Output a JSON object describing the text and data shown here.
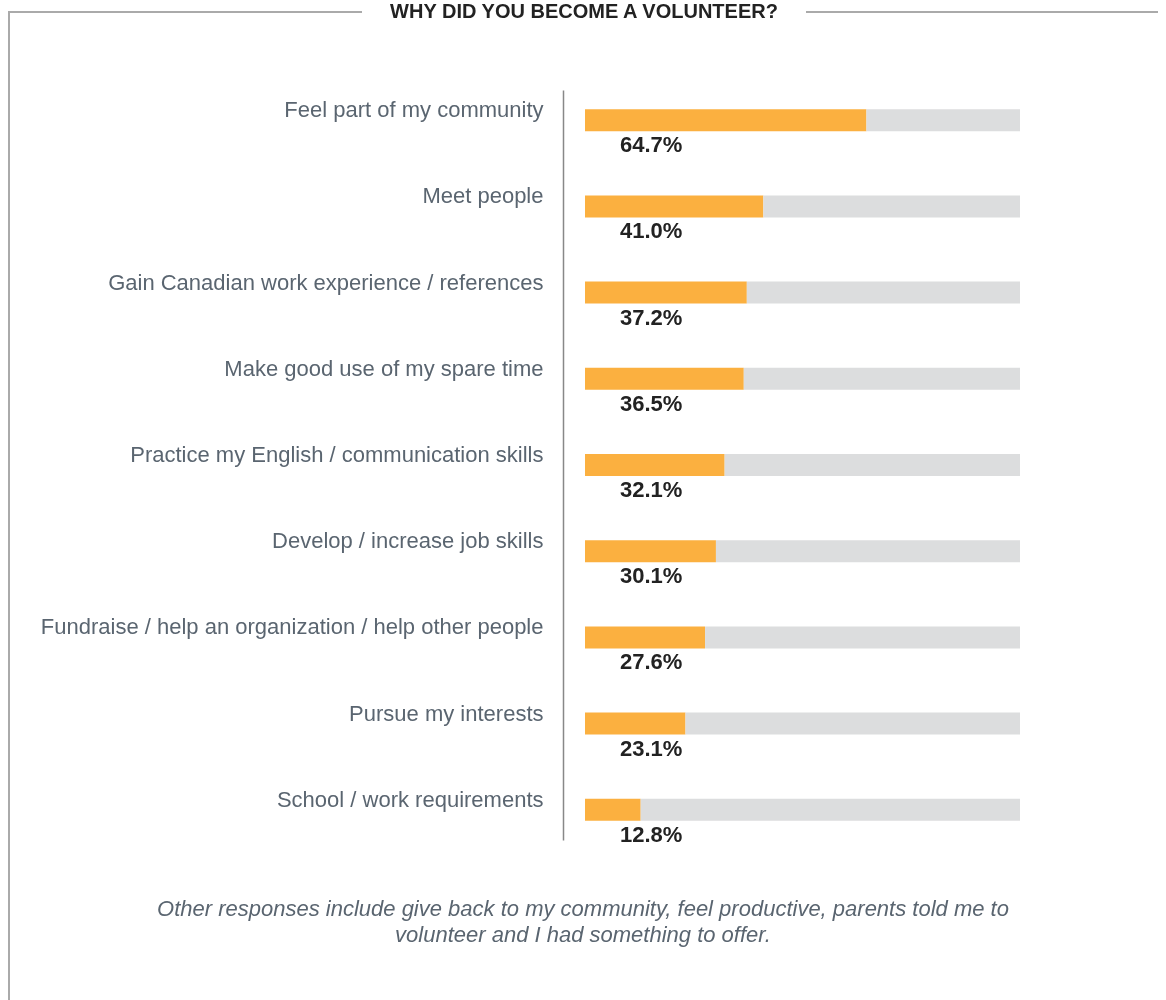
{
  "chart_data": {
    "type": "bar",
    "orientation": "horizontal",
    "stacked": true,
    "title": "WHY DID YOU BECOME A VOLUNTEER?",
    "categories": [
      "Feel part of my community",
      "Meet people",
      "Gain Canadian work experience / references",
      "Make good use of my spare time",
      "Practice my English / communication skills",
      "Develop / increase job skills",
      "Fundraise / help an organization / help other people",
      "Pursue my interests",
      "School / work requirements"
    ],
    "series": [
      {
        "color": "#fbb040",
        "values": [
          64.7,
          41.0,
          37.2,
          36.5,
          32.1,
          30.1,
          27.6,
          23.1,
          12.8
        ],
        "value_labels": [
          "64.7%",
          "41.0%",
          "37.2%",
          "36.5%",
          "32.1%",
          "30.1%",
          "27.6%",
          "23.1%",
          "12.8%"
        ]
      },
      {
        "color": "#dcddde",
        "values": [
          35.3,
          59.0,
          62.8,
          63.5,
          67.9,
          69.9,
          72.4,
          76.9,
          87.2
        ]
      }
    ],
    "xlim": [
      0,
      100
    ],
    "tick_labels": "y",
    "annotations": [
      "Other responses include give back to my community, feel productive, parents told me to volunteer and I had something to offer."
    ]
  }
}
